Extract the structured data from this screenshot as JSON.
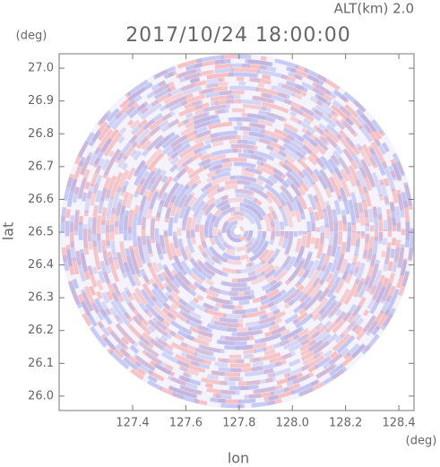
{
  "chart_data": {
    "type": "ppi",
    "subtitle": "ALT(km)  2.0",
    "title": "2017/10/24  18:00:00",
    "xlabel": "lon",
    "ylabel": "lat",
    "x_unit": "(deg)",
    "y_unit": "(deg)",
    "xlim": [
      127.124,
      128.457
    ],
    "ylim": [
      25.956,
      27.044
    ],
    "xticks": [
      127.4,
      127.6,
      127.8,
      {
        "value": 128.0,
        "label": "128.0"
      },
      128.2,
      128.4
    ],
    "yticks": [
      {
        "value": 26.0,
        "label": "26.0"
      },
      26.1,
      26.2,
      26.3,
      26.4,
      26.5,
      26.6,
      26.7,
      26.8,
      26.9,
      {
        "value": 27.0,
        "label": "27.0"
      }
    ],
    "colors": [
      "#f6a8a8",
      "#a8b0f0"
    ]
  }
}
